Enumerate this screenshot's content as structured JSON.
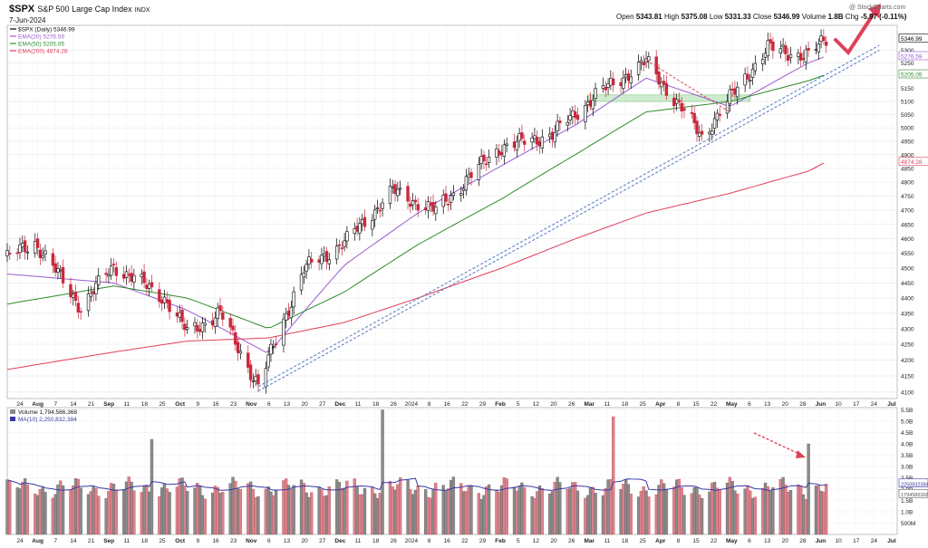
{
  "header": {
    "ticker": "$SPX",
    "name": "S&P 500 Large Cap Index",
    "exchange": "INDX",
    "date": "7-Jun-2024",
    "quote": {
      "open_label": "Open",
      "open": "5343.81",
      "high_label": "High",
      "high": "5375.08",
      "low_label": "Low",
      "low": "5331.33",
      "close_label": "Close",
      "close": "5346.99",
      "volume_label": "Volume",
      "volume": "1.8B",
      "chg_label": "Chg",
      "chg": "-5.97 (-0.11%)"
    },
    "watermark": "@ StockCharts.com"
  },
  "chart_data": [
    {
      "type": "candlestick",
      "panel": "price",
      "legend": [
        {
          "label": "$SPX (Daily) 5346.99",
          "color": "#000000"
        },
        {
          "label": "EMA(20) 5276.59",
          "color": "#9b59d0"
        },
        {
          "label": "EMA(50) 5205.05",
          "color": "#2e8b2e"
        },
        {
          "label": "EMA(200) 4874.28",
          "color": "#e0405a"
        }
      ],
      "y_ticks": [
        4100,
        4150,
        4200,
        4250,
        4300,
        4350,
        4400,
        4450,
        4500,
        4550,
        4600,
        4650,
        4700,
        4750,
        4800,
        4850,
        4900,
        4950,
        5000,
        5050,
        5100,
        5150,
        5200,
        5250,
        5300
      ],
      "ylim": [
        4080,
        5400
      ],
      "y_scale": "log",
      "x_range": [
        "2023-07-20",
        "2024-07-05"
      ],
      "x_tick_labels": [
        "24",
        "Aug",
        "7",
        "14",
        "21",
        "Sep",
        "11",
        "18",
        "25",
        "Oct",
        "9",
        "16",
        "23",
        "Nov",
        "6",
        "13",
        "20",
        "27",
        "Dec",
        "11",
        "18",
        "26",
        "2024",
        "8",
        "16",
        "22",
        "29",
        "Feb",
        "5",
        "12",
        "20",
        "26",
        "Mar",
        "11",
        "18",
        "25",
        "Apr",
        "8",
        "15",
        "22",
        "May",
        "6",
        "13",
        "20",
        "28",
        "Jun",
        "10",
        "17",
        "24",
        "Jul"
      ],
      "price_key_points": [
        {
          "date": "2023-07-20",
          "close": 4535
        },
        {
          "date": "2023-07-31",
          "close": 4588
        },
        {
          "date": "2023-08-18",
          "close": 4370
        },
        {
          "date": "2023-08-31",
          "close": 4508
        },
        {
          "date": "2023-09-20",
          "close": 4400
        },
        {
          "date": "2023-09-29",
          "close": 4288
        },
        {
          "date": "2023-10-12",
          "close": 4350
        },
        {
          "date": "2023-10-27",
          "close": 4117
        },
        {
          "date": "2023-11-14",
          "close": 4495
        },
        {
          "date": "2023-12-01",
          "close": 4594
        },
        {
          "date": "2023-12-19",
          "close": 4768
        },
        {
          "date": "2024-01-05",
          "close": 4697
        },
        {
          "date": "2024-01-30",
          "close": 4925
        },
        {
          "date": "2024-02-20",
          "close": 4975
        },
        {
          "date": "2024-03-08",
          "close": 5123
        },
        {
          "date": "2024-03-28",
          "close": 5254
        },
        {
          "date": "2024-04-19",
          "close": 4967
        },
        {
          "date": "2024-05-15",
          "close": 5308
        },
        {
          "date": "2024-05-31",
          "close": 5277
        },
        {
          "date": "2024-06-07",
          "close": 5346.99
        }
      ],
      "ema_key_points": {
        "EMA(20)": [
          {
            "date": "2023-07-20",
            "value": 4480
          },
          {
            "date": "2023-08-31",
            "value": 4450
          },
          {
            "date": "2023-09-29",
            "value": 4360
          },
          {
            "date": "2023-10-31",
            "value": 4220
          },
          {
            "date": "2023-11-30",
            "value": 4510
          },
          {
            "date": "2023-12-29",
            "value": 4690
          },
          {
            "date": "2024-01-31",
            "value": 4860
          },
          {
            "date": "2024-02-29",
            "value": 5010
          },
          {
            "date": "2024-03-28",
            "value": 5190
          },
          {
            "date": "2024-04-30",
            "value": 5080
          },
          {
            "date": "2024-05-31",
            "value": 5250
          },
          {
            "date": "2024-06-07",
            "value": 5276.59
          }
        ],
        "EMA(50)": [
          {
            "date": "2023-07-20",
            "value": 4380
          },
          {
            "date": "2023-08-31",
            "value": 4440
          },
          {
            "date": "2023-09-29",
            "value": 4400
          },
          {
            "date": "2023-10-31",
            "value": 4300
          },
          {
            "date": "2023-11-30",
            "value": 4420
          },
          {
            "date": "2023-12-29",
            "value": 4580
          },
          {
            "date": "2024-01-31",
            "value": 4740
          },
          {
            "date": "2024-02-29",
            "value": 4900
          },
          {
            "date": "2024-03-28",
            "value": 5060
          },
          {
            "date": "2024-04-30",
            "value": 5100
          },
          {
            "date": "2024-05-31",
            "value": 5180
          },
          {
            "date": "2024-06-07",
            "value": 5205.05
          }
        ],
        "EMA(200)": [
          {
            "date": "2023-07-20",
            "value": 4170
          },
          {
            "date": "2023-08-31",
            "value": 4225
          },
          {
            "date": "2023-09-29",
            "value": 4260
          },
          {
            "date": "2023-10-31",
            "value": 4270
          },
          {
            "date": "2023-11-30",
            "value": 4320
          },
          {
            "date": "2023-12-29",
            "value": 4400
          },
          {
            "date": "2024-01-31",
            "value": 4500
          },
          {
            "date": "2024-02-29",
            "value": 4600
          },
          {
            "date": "2024-03-28",
            "value": 4690
          },
          {
            "date": "2024-04-30",
            "value": 4760
          },
          {
            "date": "2024-05-31",
            "value": 4840
          },
          {
            "date": "2024-06-07",
            "value": 4874.28
          }
        ]
      },
      "right_value_labels": [
        "5346.99",
        "5276.59",
        "5205.05",
        "4874.28"
      ],
      "annotations": [
        {
          "type": "trendline",
          "style": "dashed",
          "color": "#4f79c4",
          "from": {
            "date": "2023-10-27",
            "value": 4103
          },
          "to": {
            "date": "2024-06-28",
            "value": 5300
          }
        },
        {
          "type": "trendline",
          "style": "dashed",
          "color": "#4f79c4",
          "from": {
            "date": "2023-10-27",
            "value": 4117
          },
          "to": {
            "date": "2024-06-28",
            "value": 5320
          }
        },
        {
          "type": "trendline",
          "style": "dashed",
          "color": "#e0405a",
          "from": {
            "date": "2024-03-28",
            "value": 5260
          },
          "to": {
            "date": "2024-04-30",
            "value": 5060
          }
        },
        {
          "type": "zone",
          "color": "#a5dca5",
          "from_date": "2024-03-05",
          "to_date": "2024-05-08",
          "low": 5100,
          "high": 5125
        },
        {
          "type": "arrow",
          "color": "#e0405a",
          "shape": "check-mark",
          "note": "upward arrow top-right"
        }
      ]
    },
    {
      "type": "bar",
      "panel": "volume",
      "legend": [
        {
          "label": "Volume 1,794,586,368",
          "color": "#000000"
        },
        {
          "label": "MA(10) 2,250,832,384",
          "color": "#3939a8"
        }
      ],
      "y_ticks_labels": [
        "5.5B",
        "5.0B",
        "4.5B",
        "4.0B",
        "3.5B",
        "3.0B",
        "2.5B",
        "2.0B",
        "1.5B",
        "1.0B",
        "500M"
      ],
      "y_ticks_values": [
        5.5,
        5.0,
        4.5,
        4.0,
        3.5,
        3.0,
        2.5,
        2.0,
        1.5,
        1.0,
        0.5
      ],
      "ylim": [
        0,
        5.6
      ],
      "unit": "billions of shares",
      "right_value_labels": [
        "2250832384",
        "1794586368"
      ],
      "spikes": [
        {
          "date": "2023-09-15",
          "value": 4.2
        },
        {
          "date": "2023-12-15",
          "value": 5.5
        },
        {
          "date": "2024-03-15",
          "value": 5.2
        },
        {
          "date": "2024-05-31",
          "value": 4.0
        }
      ],
      "typical_range": [
        1.8,
        2.6
      ],
      "annotations": [
        {
          "type": "arrow",
          "style": "dashed",
          "color": "#e0405a",
          "note": "points to volume spike"
        }
      ]
    }
  ]
}
